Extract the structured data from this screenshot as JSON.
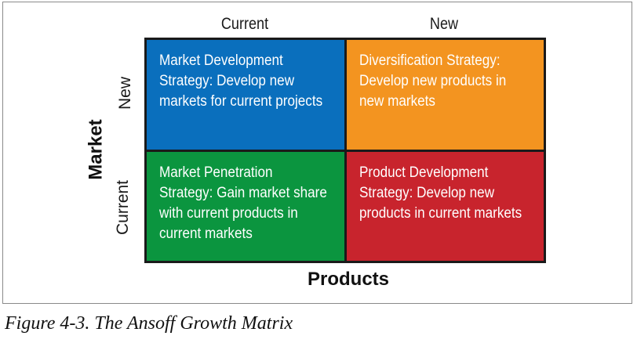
{
  "columns": {
    "current": "Current",
    "new": "New"
  },
  "rows": {
    "new": "New",
    "current": "Current"
  },
  "axis": {
    "y_title": "Market",
    "x_title": "Products"
  },
  "quadrants": {
    "top_left": {
      "text": "Market Development Strategy: Develop new markets for current projects",
      "color": "#0a6fbd"
    },
    "top_right": {
      "text": "Diversification Strategy: Develop new products in new markets",
      "color": "#f39420"
    },
    "bottom_left": {
      "text": "Market Penetration Strategy: Gain market share with current products in current markets",
      "color": "#0b953f"
    },
    "bottom_right": {
      "text": "Product Development Strategy: Develop new products in current markets",
      "color": "#c8242d"
    }
  },
  "caption": "Figure 4-3. The Ansoff Growth Matrix"
}
